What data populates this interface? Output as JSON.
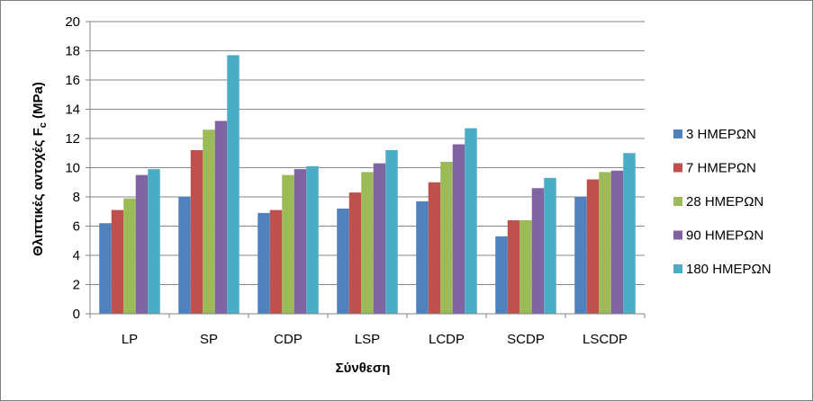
{
  "chart_data": {
    "type": "bar",
    "categories": [
      "LP",
      "SP",
      "CDP",
      "LSP",
      "LCDP",
      "SCDP",
      "LSCDP"
    ],
    "series": [
      {
        "name": "3 ΗΜΕΡΩΝ",
        "color": "#4f81bd",
        "values": [
          6.2,
          8.0,
          6.9,
          7.2,
          7.7,
          5.3,
          8.0
        ]
      },
      {
        "name": "7 ΗΜΕΡΩΝ",
        "color": "#c0504d",
        "values": [
          7.1,
          11.2,
          7.1,
          8.3,
          9.0,
          6.4,
          9.2
        ]
      },
      {
        "name": "28 ΗΜΕΡΩΝ",
        "color": "#9bbb59",
        "values": [
          7.9,
          12.6,
          9.5,
          9.7,
          10.4,
          6.4,
          9.7
        ]
      },
      {
        "name": "90 ΗΜΕΡΩΝ",
        "color": "#8064a2",
        "values": [
          9.5,
          13.2,
          9.9,
          10.3,
          11.6,
          8.6,
          9.8
        ]
      },
      {
        "name": "180 ΗΜΕΡΩΝ",
        "color": "#4bacc6",
        "values": [
          9.9,
          17.7,
          10.1,
          11.2,
          12.7,
          9.3,
          11.0
        ]
      }
    ],
    "xlabel": "Σύνθεση",
    "ylabel_main": "Θλιπτικές αντοχές F",
    "ylabel_sub": "c",
    "ylabel_unit": " (MPa)",
    "ylim": [
      0,
      20
    ],
    "yticks": [
      0,
      2,
      4,
      6,
      8,
      10,
      12,
      14,
      16,
      18,
      20
    ],
    "grid": true,
    "legend_position": "right"
  }
}
